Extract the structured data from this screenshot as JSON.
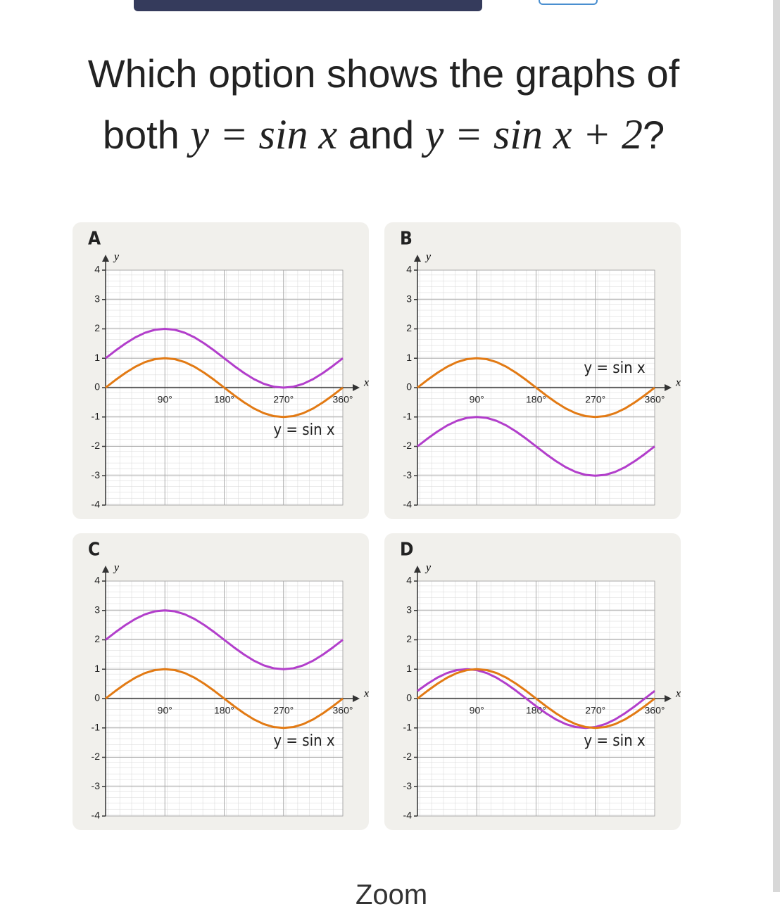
{
  "question": {
    "prefix": "Which option shows the graphs of",
    "lead": "both",
    "expr1": "y = sin x",
    "conj": "and",
    "expr2": "y = sin x + 2",
    "suffix": "?"
  },
  "footer": "Zoom",
  "chart_data": [
    {
      "type": "line",
      "title": "A",
      "x_label": "x",
      "y_label": "y",
      "annotation": "y = sin x",
      "x": [
        0,
        15,
        30,
        45,
        60,
        75,
        90,
        105,
        120,
        135,
        150,
        165,
        180,
        195,
        210,
        225,
        240,
        255,
        270,
        285,
        300,
        315,
        330,
        345,
        360
      ],
      "series": [
        {
          "color": "#b23ecb",
          "values": [
            1,
            1.26,
            1.5,
            1.71,
            1.87,
            1.97,
            2,
            1.97,
            1.87,
            1.71,
            1.5,
            1.26,
            1,
            0.74,
            0.5,
            0.29,
            0.13,
            0.03,
            0,
            0.03,
            0.13,
            0.29,
            0.5,
            0.74,
            1
          ]
        },
        {
          "color": "#e27a14",
          "values": [
            0,
            0.26,
            0.5,
            0.71,
            0.87,
            0.97,
            1,
            0.97,
            0.87,
            0.71,
            0.5,
            0.26,
            0,
            -0.26,
            -0.5,
            -0.71,
            -0.87,
            -0.97,
            -1,
            -0.97,
            -0.87,
            -0.71,
            -0.5,
            -0.26,
            0
          ]
        }
      ],
      "xlim": [
        0,
        360
      ],
      "ylim": [
        -4,
        4
      ],
      "xticks": [
        {
          "value": 90,
          "label": "90°"
        },
        {
          "value": 180,
          "label": "180°"
        },
        {
          "value": 270,
          "label": "270°"
        },
        {
          "value": 360,
          "label": "360°"
        }
      ],
      "yticks": [
        -4,
        -3,
        -2,
        -1,
        0,
        1,
        2,
        3,
        4
      ],
      "grid": true
    },
    {
      "type": "line",
      "title": "B",
      "x_label": "x",
      "y_label": "y",
      "annotation": "y = sin x",
      "x": [
        0,
        15,
        30,
        45,
        60,
        75,
        90,
        105,
        120,
        135,
        150,
        165,
        180,
        195,
        210,
        225,
        240,
        255,
        270,
        285,
        300,
        315,
        330,
        345,
        360
      ],
      "series": [
        {
          "color": "#b23ecb",
          "values": [
            -2,
            -1.74,
            -1.5,
            -1.29,
            -1.13,
            -1.03,
            -1,
            -1.03,
            -1.13,
            -1.29,
            -1.5,
            -1.74,
            -2,
            -2.26,
            -2.5,
            -2.71,
            -2.87,
            -2.97,
            -3,
            -2.97,
            -2.87,
            -2.71,
            -2.5,
            -2.26,
            -2
          ]
        },
        {
          "color": "#e27a14",
          "values": [
            0,
            0.26,
            0.5,
            0.71,
            0.87,
            0.97,
            1,
            0.97,
            0.87,
            0.71,
            0.5,
            0.26,
            0,
            -0.26,
            -0.5,
            -0.71,
            -0.87,
            -0.97,
            -1,
            -0.97,
            -0.87,
            -0.71,
            -0.5,
            -0.26,
            0
          ]
        }
      ],
      "xlim": [
        0,
        360
      ],
      "ylim": [
        -4,
        4
      ],
      "xticks": [
        {
          "value": 90,
          "label": "90°"
        },
        {
          "value": 180,
          "label": "180°"
        },
        {
          "value": 270,
          "label": "270°"
        },
        {
          "value": 360,
          "label": "360°"
        }
      ],
      "yticks": [
        -4,
        -3,
        -2,
        -1,
        0,
        1,
        2,
        3,
        4
      ],
      "grid": true
    },
    {
      "type": "line",
      "title": "C",
      "x_label": "x",
      "y_label": "y",
      "annotation": "y = sin x",
      "x": [
        0,
        15,
        30,
        45,
        60,
        75,
        90,
        105,
        120,
        135,
        150,
        165,
        180,
        195,
        210,
        225,
        240,
        255,
        270,
        285,
        300,
        315,
        330,
        345,
        360
      ],
      "series": [
        {
          "color": "#b23ecb",
          "values": [
            2,
            2.26,
            2.5,
            2.71,
            2.87,
            2.97,
            3,
            2.97,
            2.87,
            2.71,
            2.5,
            2.26,
            2,
            1.74,
            1.5,
            1.29,
            1.13,
            1.03,
            1,
            1.03,
            1.13,
            1.29,
            1.5,
            1.74,
            2
          ]
        },
        {
          "color": "#e27a14",
          "values": [
            0,
            0.26,
            0.5,
            0.71,
            0.87,
            0.97,
            1,
            0.97,
            0.87,
            0.71,
            0.5,
            0.26,
            0,
            -0.26,
            -0.5,
            -0.71,
            -0.87,
            -0.97,
            -1,
            -0.97,
            -0.87,
            -0.71,
            -0.5,
            -0.26,
            0
          ]
        }
      ],
      "xlim": [
        0,
        360
      ],
      "ylim": [
        -4,
        4
      ],
      "xticks": [
        {
          "value": 90,
          "label": "90°"
        },
        {
          "value": 180,
          "label": "180°"
        },
        {
          "value": 270,
          "label": "270°"
        },
        {
          "value": 360,
          "label": "360°"
        }
      ],
      "yticks": [
        -4,
        -3,
        -2,
        -1,
        0,
        1,
        2,
        3,
        4
      ],
      "grid": true
    },
    {
      "type": "line",
      "title": "D",
      "x_label": "x",
      "y_label": "y",
      "annotation": "y = sin x",
      "x": [
        0,
        15,
        30,
        45,
        60,
        75,
        90,
        105,
        120,
        135,
        150,
        165,
        180,
        195,
        210,
        225,
        240,
        255,
        270,
        285,
        300,
        315,
        330,
        345,
        360
      ],
      "series": [
        {
          "color": "#b23ecb",
          "values": [
            0.26,
            0.5,
            0.71,
            0.87,
            0.97,
            1,
            0.97,
            0.87,
            0.71,
            0.5,
            0.26,
            0,
            -0.26,
            -0.5,
            -0.71,
            -0.87,
            -0.97,
            -1,
            -0.97,
            -0.87,
            -0.71,
            -0.5,
            -0.26,
            0,
            0.26
          ]
        },
        {
          "color": "#e27a14",
          "values": [
            0,
            0.26,
            0.5,
            0.71,
            0.87,
            0.97,
            1,
            0.97,
            0.87,
            0.71,
            0.5,
            0.26,
            0,
            -0.26,
            -0.5,
            -0.71,
            -0.87,
            -0.97,
            -1,
            -0.97,
            -0.87,
            -0.71,
            -0.5,
            -0.26,
            0
          ]
        }
      ],
      "xlim": [
        0,
        360
      ],
      "ylim": [
        -4,
        4
      ],
      "xticks": [
        {
          "value": 90,
          "label": "90°"
        },
        {
          "value": 180,
          "label": "180°"
        },
        {
          "value": 270,
          "label": "270°"
        },
        {
          "value": 360,
          "label": "360°"
        }
      ],
      "yticks": [
        -4,
        -3,
        -2,
        -1,
        0,
        1,
        2,
        3,
        4
      ],
      "grid": true
    }
  ]
}
